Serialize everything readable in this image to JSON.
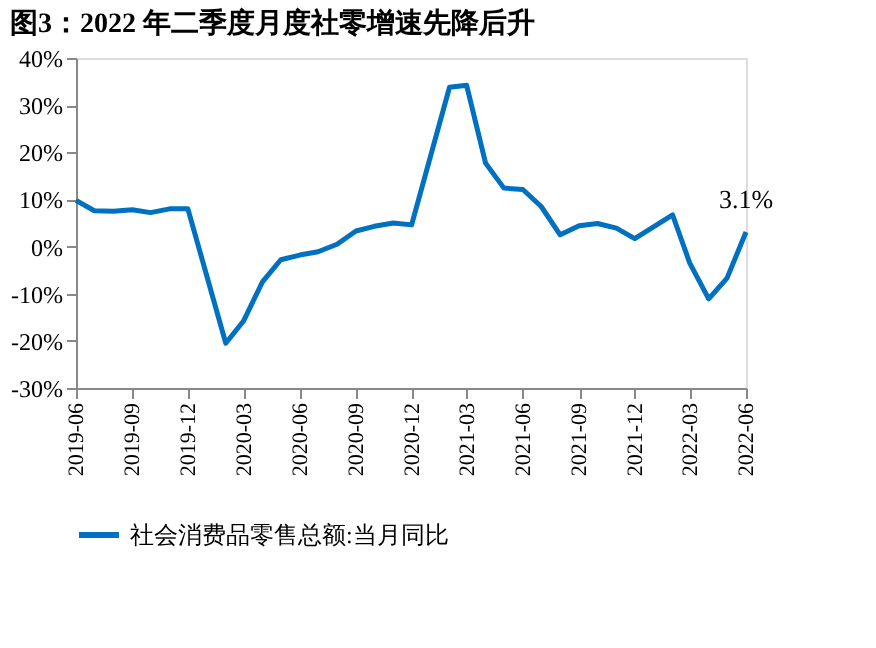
{
  "chart_data": {
    "type": "line",
    "title": "图3：2022 年二季度月度社零增速先降后升",
    "x": [
      "2019-06",
      "2019-07",
      "2019-08",
      "2019-09",
      "2019-10",
      "2019-11",
      "2019-12",
      "2020-02",
      "2020-03",
      "2020-04",
      "2020-05",
      "2020-06",
      "2020-07",
      "2020-08",
      "2020-09",
      "2020-10",
      "2020-11",
      "2020-12",
      "2021-02",
      "2021-03",
      "2021-04",
      "2021-05",
      "2021-06",
      "2021-07",
      "2021-08",
      "2021-09",
      "2021-10",
      "2021-11",
      "2021-12",
      "2022-02",
      "2022-03",
      "2022-04",
      "2022-05",
      "2022-06"
    ],
    "series": [
      {
        "name": "社会消费品零售总额:当月同比",
        "color": "#0070c0",
        "values": [
          9.8,
          7.6,
          7.5,
          7.8,
          7.2,
          8.0,
          8.0,
          -20.5,
          -15.8,
          -7.5,
          -2.8,
          -1.8,
          -1.1,
          0.5,
          3.3,
          4.3,
          5.0,
          4.6,
          33.8,
          34.2,
          17.7,
          12.4,
          12.1,
          8.5,
          2.5,
          4.4,
          4.9,
          3.9,
          1.7,
          6.7,
          -3.5,
          -11.1,
          -6.7,
          3.1
        ],
        "value_labels": [
          null,
          null,
          null,
          null,
          null,
          null,
          null,
          null,
          null,
          null,
          null,
          null,
          null,
          null,
          null,
          null,
          null,
          null,
          null,
          null,
          null,
          null,
          null,
          null,
          null,
          null,
          null,
          null,
          null,
          null,
          null,
          null,
          null,
          "3.1%"
        ]
      }
    ],
    "xlim": [
      "2019-06",
      "2022-06"
    ],
    "xticks": [
      "2019-06",
      "2019-09",
      "2019-12",
      "2020-03",
      "2020-06",
      "2020-09",
      "2020-12",
      "2021-03",
      "2021-06",
      "2021-09",
      "2021-12",
      "2022-03",
      "2022-06"
    ],
    "ylim": [
      -30,
      40
    ],
    "yticks": [
      {
        "value": -30,
        "label": "-30%"
      },
      {
        "value": -20,
        "label": "-20%"
      },
      {
        "value": -10,
        "label": "-10%"
      },
      {
        "value": 0,
        "label": "0%"
      },
      {
        "value": 10,
        "label": "10%"
      },
      {
        "value": 20,
        "label": "20%"
      },
      {
        "value": 30,
        "label": "30%"
      },
      {
        "value": 40,
        "label": "40%"
      }
    ],
    "grid": false,
    "legend": "bottom",
    "marker": "none",
    "line_style": "solid"
  }
}
